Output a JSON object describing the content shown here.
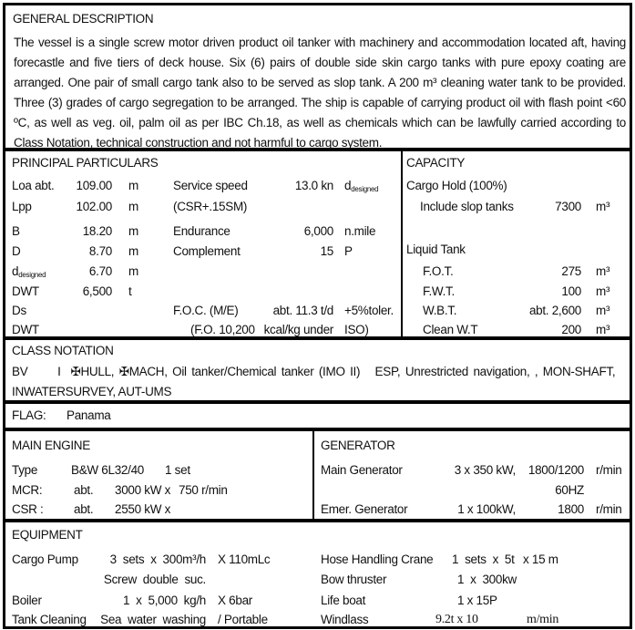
{
  "general": {
    "title": "GENERAL DESCRIPTION",
    "text": "The vessel is a single screw motor driven product oil tanker with machinery and accommodation located aft, having forecastle and five tiers of deck house. Six (6) pairs of double side skin cargo tanks with pure epoxy coating are arranged. One pair of small cargo tank also to be served as slop tank. A 200 m³ cleaning water tank to be provided. Three (3) grades of cargo segregation to be arranged. The ship is capable of carrying product oil with flash point <60 ºC, as well as veg. oil, palm oil as per IBC Ch.18, as well as chemicals which can be lawfully carried according to Class Notation, technical construction and not harmful to cargo system."
  },
  "principal": {
    "title": "PRINCIPAL PARTICULARS",
    "rows": [
      [
        "Loa abt.",
        "109.00",
        "m",
        "Service speed",
        "13.0 kn",
        "d",
        "designed"
      ],
      [
        "Lpp",
        "102.00",
        "m",
        "(CSR+.15SM)",
        "",
        "",
        ""
      ],
      [
        "B",
        "18.20",
        "m",
        "Endurance",
        "6,000",
        "n.mile",
        ""
      ],
      [
        "D",
        "8.70",
        "m",
        "Complement",
        "15",
        "P",
        ""
      ],
      [
        "d",
        "6.70",
        "m",
        "",
        "",
        "",
        ""
      ],
      [
        "DWT",
        "6,500",
        "t",
        "",
        "",
        "",
        ""
      ],
      [
        "Ds",
        "",
        "",
        "F.O.C. (M/E)",
        "abt. 11.3 t/d",
        "+5%toler.",
        ""
      ],
      [
        "DWT",
        "",
        "",
        "(F.O. 10,200",
        "kcal/kg under",
        "ISO)",
        ""
      ]
    ],
    "d_sub": "designed"
  },
  "capacity": {
    "title": "CAPACITY",
    "cargo_hold": "Cargo Hold (100%)",
    "slop": {
      "label": "Include slop tanks",
      "value": "7300",
      "unit": "m³"
    },
    "liquid": "Liquid Tank",
    "tanks": [
      {
        "label": "F.O.T.",
        "value": "275",
        "unit": "m³"
      },
      {
        "label": "F.W.T.",
        "value": "100",
        "unit": "m³"
      },
      {
        "label": "W.B.T.",
        "value": "abt. 2,600",
        "unit": "m³"
      },
      {
        "label": "Clean W.T",
        "value": "200",
        "unit": "m³"
      }
    ]
  },
  "class": {
    "title": "CLASS NOTATION",
    "line1": "BV      I  ✠HULL, ✠MACH, Oil tanker/Chemical tanker (IMO II)   ESP, Unrestricted navigation, , MON-SHAFT,",
    "line2": "INWATERSURVEY, AUT-UMS"
  },
  "flag": {
    "label": "FLAG:",
    "value": "Panama"
  },
  "engine": {
    "title": "MAIN ENGINE",
    "rows": [
      [
        "Type",
        "B&W 6L32/40",
        "1 set"
      ],
      [
        "MCR:",
        "abt.",
        "3000 kW x",
        "750 r/min"
      ],
      [
        "CSR :",
        "abt.",
        "2550 kW x",
        ""
      ]
    ]
  },
  "generator": {
    "title": "GENERATOR",
    "main": [
      "Main Generator",
      "3 x 350 kW,",
      "1800/1200",
      "r/min"
    ],
    "hz": "60HZ",
    "emer": [
      "Emer.  Generator",
      "1  x  100kW,",
      "1800",
      "r/min"
    ]
  },
  "equipment": {
    "title": "EQUIPMENT",
    "left": [
      [
        "Cargo Pump",
        "3  sets  x  300m³/h",
        "X 110mLc"
      ],
      [
        "",
        "Screw  double  suc.",
        ""
      ],
      [
        "Boiler",
        "1  x  5,000  kg/h",
        "X 6bar"
      ],
      [
        "Tank Cleaning",
        "Sea  water  washing",
        "/ Portable"
      ]
    ],
    "right": [
      [
        "Hose Handling Crane",
        "1  sets  x  5t",
        "x 15 m"
      ],
      [
        "Bow thruster",
        "1  x  300kw",
        ""
      ],
      [
        "Life boat",
        "1 x 15P",
        ""
      ],
      [
        "Windlass",
        "9.2t x 10",
        "m/min"
      ]
    ]
  }
}
